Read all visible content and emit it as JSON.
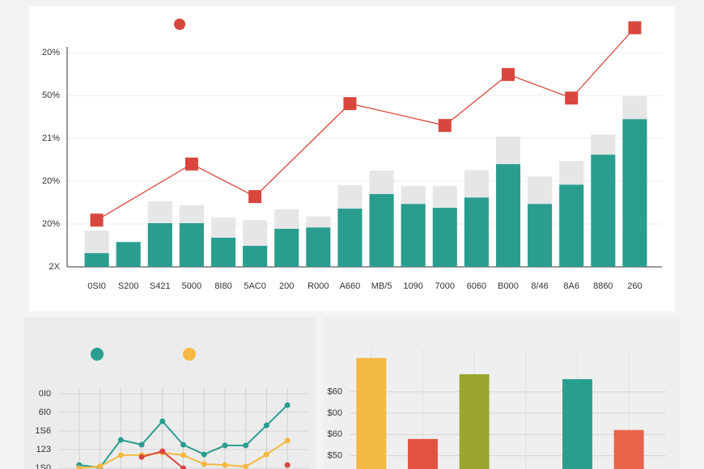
{
  "chart_data": [
    {
      "type": "bar",
      "stacked": true,
      "grid": true,
      "connect_nulls": true,
      "categories": [
        "0SI0",
        "S200",
        "S421",
        "5000",
        "8I80",
        "5AC0",
        "200",
        "R000",
        "A660",
        "MB/5",
        "1090",
        "7000",
        "6060",
        "B000",
        "8/46",
        "8A6",
        "8860",
        "260"
      ],
      "series": [
        {
          "color": "#2a9d8f",
          "values": [
            0.32,
            0.58,
            1.02,
            1.02,
            0.68,
            0.49,
            0.89,
            0.92,
            1.36,
            1.7,
            1.47,
            1.38,
            1.62,
            2.4,
            1.47,
            1.92,
            2.62,
            3.45
          ]
        },
        {
          "color": "#e6e6e6",
          "values": [
            0.53,
            0,
            0.51,
            0.42,
            0.47,
            0.6,
            0.45,
            0.26,
            0.55,
            0.55,
            0.42,
            0.51,
            0.64,
            0.64,
            0.64,
            0.55,
            0.47,
            0.53
          ]
        },
        {
          "type": "line",
          "marker": "square",
          "color": "#d9463e",
          "values": [
            1.09,
            null,
            null,
            2.4,
            null,
            1.64,
            null,
            null,
            3.81,
            null,
            null,
            3.3,
            null,
            4.49,
            null,
            3.94,
            null,
            5.58
          ]
        }
      ],
      "ylim": [
        0,
        5.7
      ],
      "yticks": [
        {
          "value": 0,
          "label": "2X"
        },
        {
          "value": 1,
          "label": "20%"
        },
        {
          "value": 2,
          "label": "20%"
        },
        {
          "value": 3,
          "label": "21%"
        },
        {
          "value": 4,
          "label": "50%"
        },
        {
          "value": 5,
          "label": "20%"
        }
      ]
    },
    {
      "type": "line",
      "grid": true,
      "categories": [
        null,
        null,
        null,
        null,
        null,
        null,
        null,
        null,
        null,
        null,
        null
      ],
      "series": [
        {
          "marker": "circle",
          "color": "#2a9d8f",
          "values": [
            0.17,
            0.04,
            1.52,
            1.26,
            2.52,
            1.26,
            0.74,
            1.22,
            1.22,
            2.3,
            3.39
          ]
        },
        {
          "marker": "circle",
          "color": "#f4b942",
          "values": [
            0,
            0.1,
            0.7,
            0.7,
            0.83,
            0.7,
            0.22,
            0.17,
            0.09,
            0.74,
            1.48
          ]
        },
        {
          "marker": "circle",
          "color": "#d9463e",
          "values": [
            null,
            null,
            null,
            0.6,
            0.91,
            0,
            null,
            null,
            null,
            null,
            0.17
          ]
        }
      ],
      "ylim": [
        0,
        4.3
      ],
      "yticks": [
        {
          "value": 0,
          "label": "1S0"
        },
        {
          "value": 1,
          "label": "123"
        },
        {
          "value": 2,
          "label": "1S6"
        },
        {
          "value": 3,
          "label": "6I0"
        },
        {
          "value": 4,
          "label": "0I0"
        }
      ]
    },
    {
      "type": "bar",
      "grid": true,
      "categories": [
        null,
        null,
        null,
        null,
        null,
        null
      ],
      "values": [
        5.59,
        1.79,
        4.83,
        null,
        4.6,
        2.21
      ],
      "colors": [
        "#f4b942",
        "#e2533f",
        "#9aa62f",
        null,
        "#2a9d8f",
        "#e9624a"
      ],
      "ylim": [
        0,
        6
      ],
      "yticks": [
        {
          "value": 1,
          "label": "$50"
        },
        {
          "value": 2,
          "label": "$60"
        },
        {
          "value": 3,
          "label": "$00"
        },
        {
          "value": 4,
          "label": "$60"
        }
      ]
    }
  ]
}
